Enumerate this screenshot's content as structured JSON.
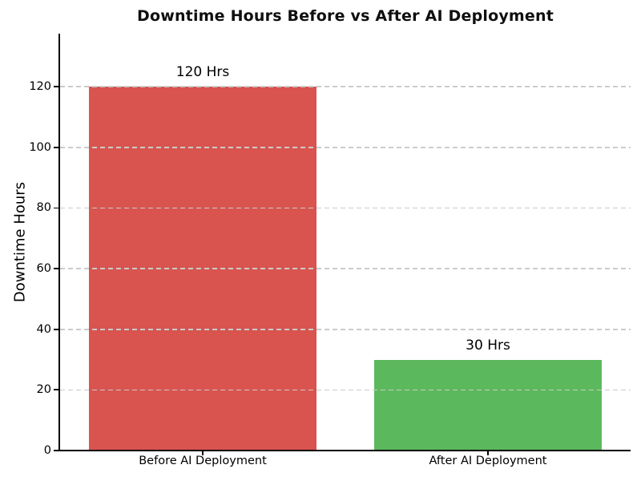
{
  "chart_data": {
    "type": "bar",
    "title": "Downtime Hours Before vs After AI Deployment",
    "xlabel": "",
    "ylabel": "Downtime Hours",
    "categories": [
      "Before AI Deployment",
      "After AI Deployment"
    ],
    "values": [
      120,
      30
    ],
    "bar_labels": [
      "120 Hrs",
      "30 Hrs"
    ],
    "bar_colors": [
      "#d9534f",
      "#5cb85c"
    ],
    "ylim": [
      0,
      137.5
    ],
    "yticks": [
      0,
      20,
      40,
      60,
      80,
      100,
      120
    ],
    "grid": "horizontal-dashed",
    "grid_color": "#cbcbcb",
    "axis_color": "#000000",
    "title_color": "#0f0f0f",
    "legend": "none",
    "bar_width_fraction": 0.8
  }
}
